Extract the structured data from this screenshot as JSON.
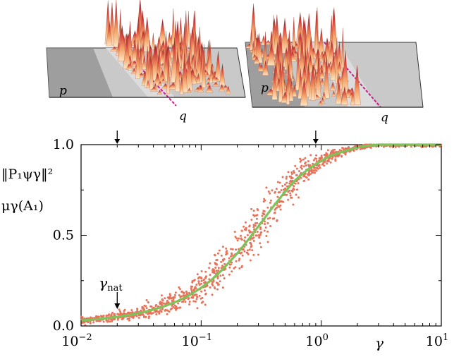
{
  "insets": {
    "left": {
      "p_label": "p",
      "q_label": "q"
    },
    "right": {
      "p_label": "p",
      "q_label": "q"
    }
  },
  "chart_data": {
    "type": "scatter",
    "xscale": "log",
    "xlim": [
      0.01,
      10
    ],
    "ylim": [
      0.0,
      1.0
    ],
    "x_ticks": [
      0.01,
      0.1,
      1,
      10
    ],
    "x_tick_labels": [
      {
        "base": "10",
        "exp": "−2"
      },
      {
        "base": "10",
        "exp": "−1"
      },
      {
        "base": "10",
        "exp": "0"
      },
      {
        "base": "10",
        "exp": "1"
      }
    ],
    "y_ticks": [
      0.0,
      0.5,
      1.0
    ],
    "y_tick_labels": [
      "0.0",
      "0.5",
      "1.0"
    ],
    "xlabel": "γ",
    "ylabel_lines": [
      "‖P₁ψγ‖²",
      "μγ(A₁)"
    ],
    "annotation": {
      "text": "γnat",
      "main": "γ",
      "sub": "nat",
      "x": 0.02
    },
    "inset_markers_x": [
      0.02,
      0.9
    ],
    "grid": false,
    "series": [
      {
        "kind": "scatter",
        "color": "#e8735a",
        "note_spread": 0.05,
        "x": [
          0.01,
          0.012,
          0.015,
          0.02,
          0.025,
          0.03,
          0.04,
          0.05,
          0.06,
          0.07,
          0.08,
          0.1,
          0.12,
          0.15,
          0.2,
          0.25,
          0.3,
          0.4,
          0.5,
          0.6,
          0.7,
          0.8,
          1.0,
          1.2,
          1.5,
          2.0,
          2.5,
          3.0,
          4.0,
          5.0,
          6.0,
          8.0,
          10.0
        ],
        "y": [
          0.03,
          0.035,
          0.04,
          0.05,
          0.06,
          0.07,
          0.09,
          0.11,
          0.13,
          0.15,
          0.17,
          0.21,
          0.25,
          0.31,
          0.4,
          0.48,
          0.55,
          0.66,
          0.74,
          0.8,
          0.84,
          0.87,
          0.91,
          0.94,
          0.96,
          0.985,
          0.995,
          1.0,
          1.0,
          1.0,
          1.0,
          1.0,
          1.0
        ]
      },
      {
        "kind": "line",
        "color": "#7cc45a",
        "x": [
          0.01,
          0.012,
          0.015,
          0.02,
          0.025,
          0.03,
          0.04,
          0.05,
          0.06,
          0.07,
          0.08,
          0.1,
          0.12,
          0.15,
          0.2,
          0.25,
          0.3,
          0.4,
          0.5,
          0.6,
          0.7,
          0.8,
          1.0,
          1.2,
          1.5,
          2.0,
          2.5,
          3.0,
          4.0,
          5.0,
          6.0,
          8.0,
          10.0
        ],
        "y": [
          0.03,
          0.035,
          0.04,
          0.05,
          0.06,
          0.07,
          0.09,
          0.11,
          0.13,
          0.15,
          0.17,
          0.21,
          0.25,
          0.31,
          0.4,
          0.48,
          0.55,
          0.66,
          0.74,
          0.8,
          0.84,
          0.87,
          0.91,
          0.94,
          0.96,
          0.985,
          0.995,
          1.0,
          1.0,
          1.0,
          1.0,
          1.0,
          1.0
        ]
      }
    ]
  }
}
